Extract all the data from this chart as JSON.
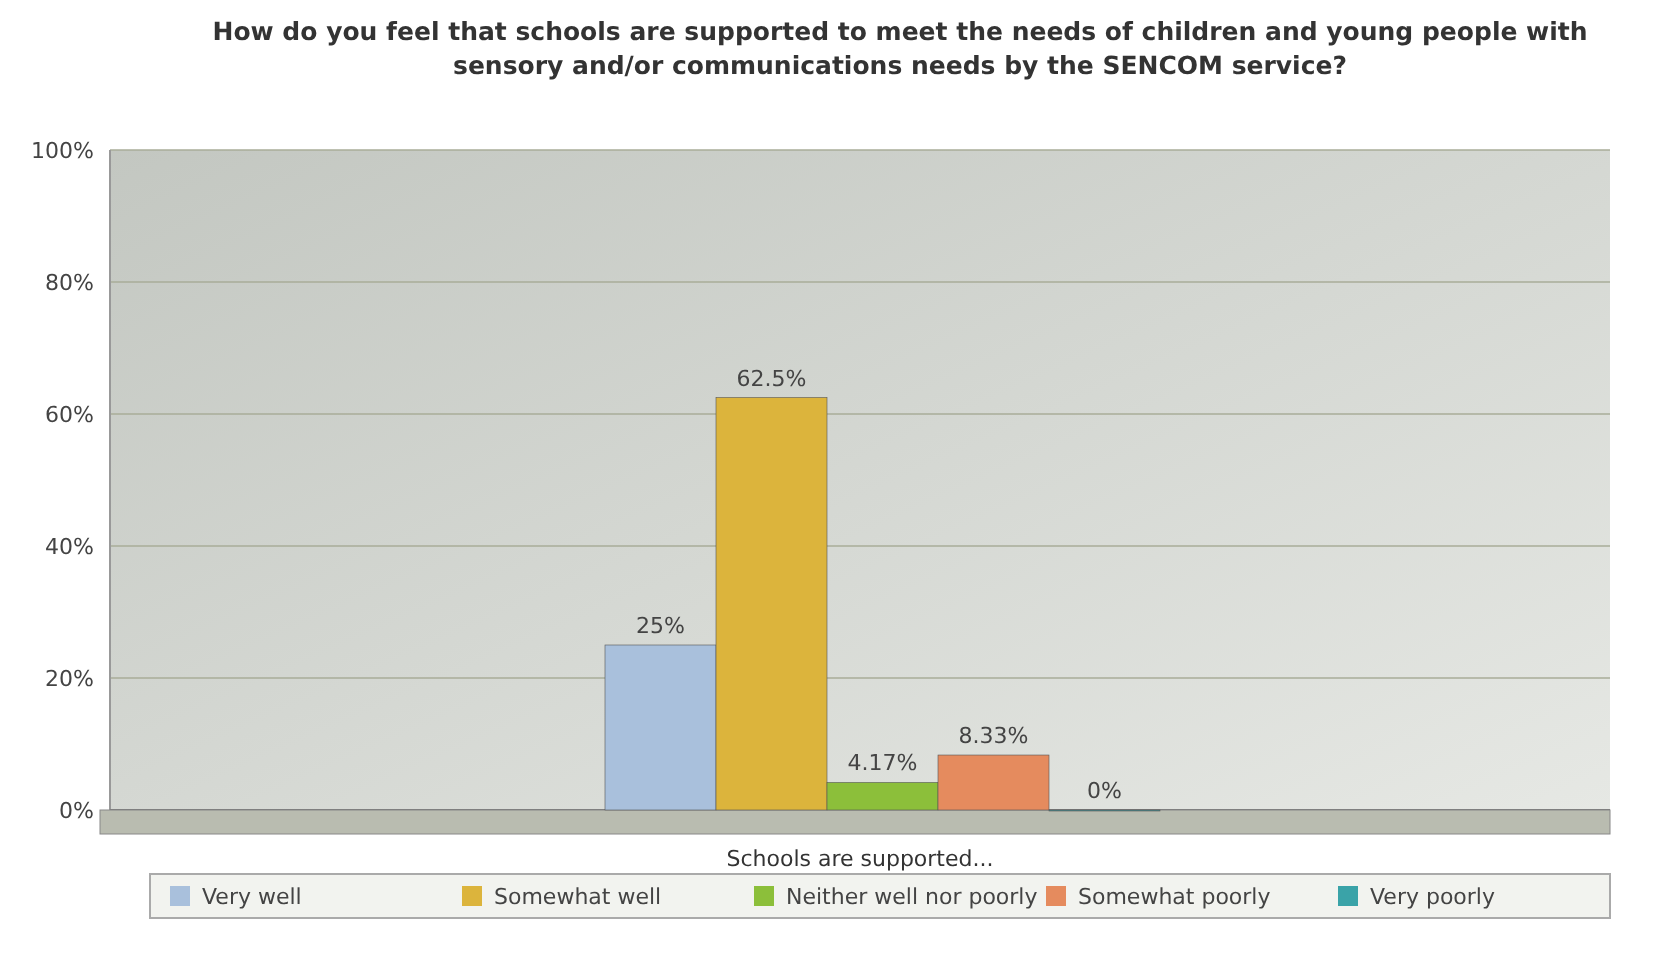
{
  "chart_data": {
    "type": "bar",
    "title": "How do you feel that schools are supported to meet the needs of children and young people with sensory and/or communications needs by the SENCOM service?",
    "xlabel": "Schools are supported...",
    "categories": [
      null
    ],
    "series": [
      {
        "name": "Very well",
        "color": "#a9c0dc",
        "values": [
          25
        ],
        "value_labels": [
          "25%"
        ]
      },
      {
        "name": "Somewhat well",
        "color": "#dcb43c",
        "values": [
          62.5
        ],
        "value_labels": [
          "62.5%"
        ]
      },
      {
        "name": "Neither well nor poorly",
        "color": "#8cbf3a",
        "values": [
          4.17
        ],
        "value_labels": [
          "4.17%"
        ]
      },
      {
        "name": "Somewhat poorly",
        "color": "#e58b5e",
        "values": [
          8.33
        ],
        "value_labels": [
          "8.33%"
        ]
      },
      {
        "name": "Very poorly",
        "color": "#3aa3a8",
        "values": [
          0
        ],
        "value_labels": [
          "0%"
        ]
      }
    ],
    "ylim": [
      0,
      100
    ],
    "yticks": [
      {
        "value": 0,
        "label": "0%"
      },
      {
        "value": 20,
        "label": "20%"
      },
      {
        "value": 40,
        "label": "40%"
      },
      {
        "value": 60,
        "label": "60%"
      },
      {
        "value": 80,
        "label": "80%"
      },
      {
        "value": 100,
        "label": "100%"
      }
    ],
    "grid": "y",
    "legend": "bottom"
  }
}
